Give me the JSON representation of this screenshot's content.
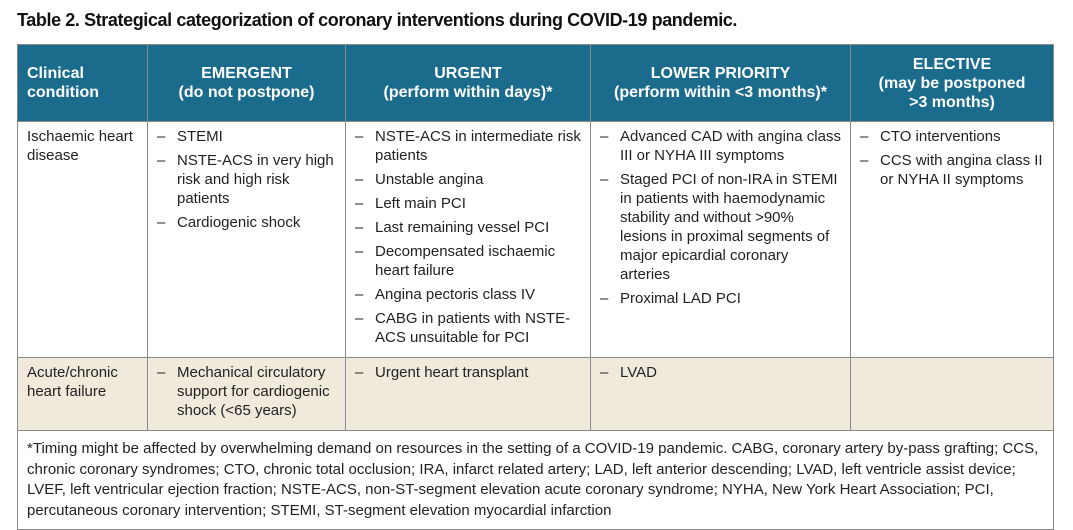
{
  "title": "Table 2. Strategical categorization of coronary interventions during COVID-19 pandemic.",
  "table": {
    "header": [
      [
        "Clinical",
        "condition"
      ],
      [
        "EMERGENT",
        "(do not postpone)"
      ],
      [
        "URGENT",
        "(perform within days)*"
      ],
      [
        "LOWER PRIORITY",
        "(perform within <3 months)*"
      ],
      [
        "ELECTIVE",
        "(may be postponed",
        ">3 months)"
      ]
    ],
    "rows": [
      [
        "Ischaemic heart disease",
        [
          "STEMI",
          "NSTE-ACS in very high risk and high risk patients",
          "Cardiogenic shock"
        ],
        [
          "NSTE-ACS in intermediate risk patients",
          "Unstable angina",
          "Left main PCI",
          "Last remaining vessel PCI",
          "Decompensated ischaemic heart failure",
          "Angina pectoris class IV",
          "CABG in patients with NSTE-ACS unsuitable for PCI"
        ],
        [
          "Advanced CAD with angina class III or NYHA III symptoms",
          "Staged PCI of non-IRA in STEMI in patients with haemodynamic stability and without >90% lesions in proximal segments of major epicardial coronary arteries",
          "Proximal LAD PCI"
        ],
        [
          "CTO interventions",
          "CCS with angina class II or NYHA II symptoms"
        ]
      ],
      [
        "Acute/chronic heart failure",
        [
          "Mechanical circulatory support for cardiogenic shock (<65 years)"
        ],
        [
          "Urgent heart transplant"
        ],
        [
          "LVAD"
        ],
        []
      ]
    ]
  },
  "footnote": "*Timing might be affected by overwhelming demand on resources in the setting of a COVID-19 pandemic. CABG, coronary artery by-pass grafting; CCS, chronic coronary syndromes; CTO, chronic total occlusion; IRA, infarct related artery; LAD, left anterior descending; LVAD, left ventricle assist device; LVEF, left ventricular ejection fraction; NSTE-ACS, non-ST-segment elevation acute coronary syndrome; NYHA, New York Heart Association; PCI, percutaneous coronary intervention; STEMI, ST-segment elevation myocardial infarction"
}
